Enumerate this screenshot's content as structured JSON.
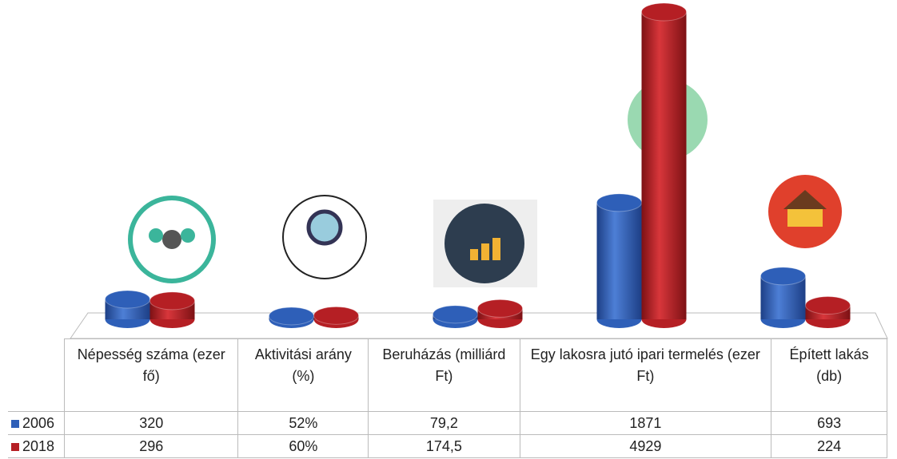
{
  "chart_data": {
    "type": "cylinder-bar",
    "categories": [
      "Népesség száma (ezer fő)",
      "Aktivitási arány (%)",
      "Beruházás (milliárd Ft)",
      "Egy lakosra jutó ipari termelés (ezer Ft)",
      "Épített lakás (db)"
    ],
    "series": [
      {
        "name": "2006",
        "color": "#2e5fb8",
        "values": [
          320,
          52,
          79.2,
          1871,
          693
        ],
        "value_labels": [
          "320",
          "52%",
          "79,2",
          "1871",
          "693"
        ]
      },
      {
        "name": "2018",
        "color": "#b51f24",
        "values": [
          296,
          60,
          174.5,
          4929,
          224
        ],
        "value_labels": [
          "296",
          "60%",
          "174,5",
          "4929",
          "224"
        ]
      }
    ]
  }
}
